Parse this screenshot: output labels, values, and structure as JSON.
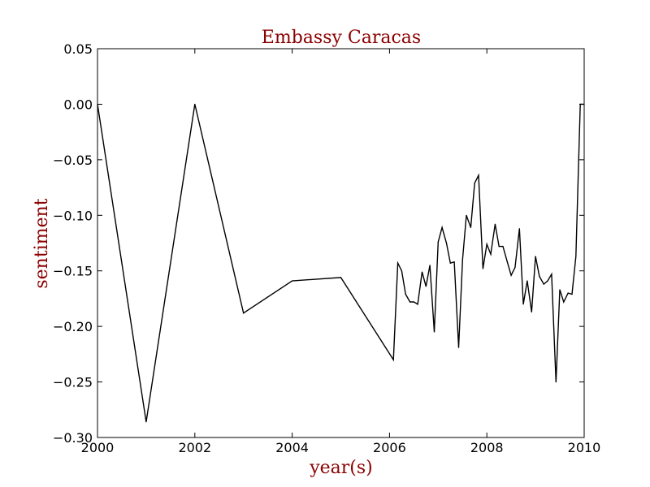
{
  "chart_data": {
    "type": "line",
    "title": "Embassy Caracas",
    "xlabel": "year(s)",
    "ylabel": "sentiment",
    "xlim": [
      2000,
      2010
    ],
    "ylim": [
      -0.3,
      0.05
    ],
    "grid": false,
    "x_ticks": [
      2000,
      2002,
      2004,
      2006,
      2008,
      2010
    ],
    "x_tick_labels": [
      "2000",
      "2002",
      "2004",
      "2006",
      "2008",
      "2010"
    ],
    "y_ticks": [
      0.05,
      0.0,
      -0.05,
      -0.1,
      -0.15,
      -0.2,
      -0.25,
      -0.3
    ],
    "y_tick_labels": [
      "0.05",
      "0.00",
      "−0.05",
      "−0.10",
      "−0.15",
      "−0.20",
      "−0.25",
      "−0.30"
    ],
    "series": [
      {
        "x": [
          2000.0,
          2001.0,
          2002.0,
          2003.0,
          2004.0,
          2005.0,
          2006.08,
          2006.17,
          2006.25,
          2006.33,
          2006.42,
          2006.5,
          2006.58,
          2006.67,
          2006.75,
          2006.83,
          2006.92,
          2007.0,
          2007.08,
          2007.17,
          2007.25,
          2007.33,
          2007.42,
          2007.5,
          2007.58,
          2007.67,
          2007.75,
          2007.83,
          2007.92,
          2008.0,
          2008.08,
          2008.17,
          2008.25,
          2008.33,
          2008.42,
          2008.5,
          2008.58,
          2008.67,
          2008.75,
          2008.83,
          2008.92,
          2009.0,
          2009.08,
          2009.17,
          2009.25,
          2009.33,
          2009.42,
          2009.5,
          2009.58,
          2009.67,
          2009.75,
          2009.83,
          2009.92,
          2010.0
        ],
        "values": [
          0.0,
          -0.286,
          0.0,
          -0.188,
          -0.159,
          -0.156,
          -0.23,
          -0.143,
          -0.15,
          -0.171,
          -0.178,
          -0.178,
          -0.18,
          -0.151,
          -0.164,
          -0.145,
          -0.205,
          -0.124,
          -0.111,
          -0.125,
          -0.143,
          -0.142,
          -0.219,
          -0.14,
          -0.1,
          -0.111,
          -0.071,
          -0.064,
          -0.148,
          -0.126,
          -0.135,
          -0.108,
          -0.128,
          -0.128,
          -0.142,
          -0.154,
          -0.147,
          -0.112,
          -0.18,
          -0.159,
          -0.187,
          -0.137,
          -0.155,
          -0.162,
          -0.159,
          -0.153,
          -0.25,
          -0.167,
          -0.178,
          -0.17,
          -0.171,
          -0.137,
          0.0,
          0.0
        ],
        "color": "#000000"
      }
    ],
    "colors": {
      "title": "#8b0000",
      "axis_label": "#8b0000",
      "line": "#000000",
      "frame": "#000000"
    }
  }
}
